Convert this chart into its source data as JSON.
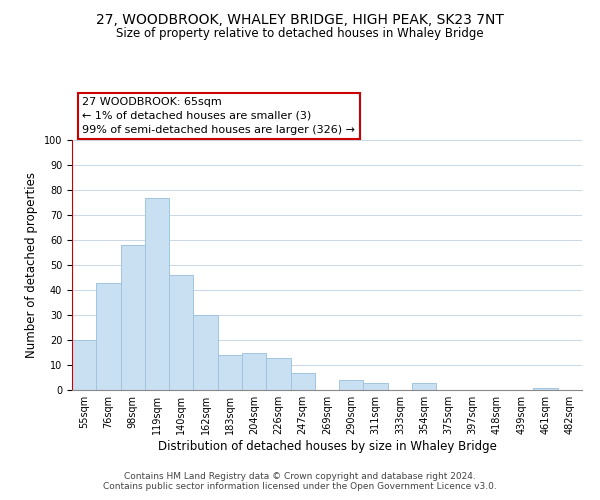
{
  "title": "27, WOODBROOK, WHALEY BRIDGE, HIGH PEAK, SK23 7NT",
  "subtitle": "Size of property relative to detached houses in Whaley Bridge",
  "xlabel": "Distribution of detached houses by size in Whaley Bridge",
  "ylabel": "Number of detached properties",
  "bar_labels": [
    "55sqm",
    "76sqm",
    "98sqm",
    "119sqm",
    "140sqm",
    "162sqm",
    "183sqm",
    "204sqm",
    "226sqm",
    "247sqm",
    "269sqm",
    "290sqm",
    "311sqm",
    "333sqm",
    "354sqm",
    "375sqm",
    "397sqm",
    "418sqm",
    "439sqm",
    "461sqm",
    "482sqm"
  ],
  "bar_values": [
    20,
    43,
    58,
    77,
    46,
    30,
    14,
    15,
    13,
    7,
    0,
    4,
    3,
    0,
    3,
    0,
    0,
    0,
    0,
    1,
    0
  ],
  "bar_color": "#c9dff2",
  "bar_edge_color": "#a0c4e0",
  "highlight_edge_color": "#cc0000",
  "annotation_box_text": "27 WOODBROOK: 65sqm\n← 1% of detached houses are smaller (3)\n99% of semi-detached houses are larger (326) →",
  "annotation_box_edge_color": "#cc0000",
  "annotation_box_facecolor": "#ffffff",
  "ylim": [
    0,
    100
  ],
  "yticks": [
    0,
    10,
    20,
    30,
    40,
    50,
    60,
    70,
    80,
    90,
    100
  ],
  "footer_line1": "Contains HM Land Registry data © Crown copyright and database right 2024.",
  "footer_line2": "Contains public sector information licensed under the Open Government Licence v3.0.",
  "background_color": "#ffffff",
  "grid_color": "#c8d8e8",
  "title_fontsize": 10,
  "subtitle_fontsize": 8.5,
  "axis_label_fontsize": 8.5,
  "tick_fontsize": 7,
  "annotation_fontsize": 8,
  "footer_fontsize": 6.5
}
